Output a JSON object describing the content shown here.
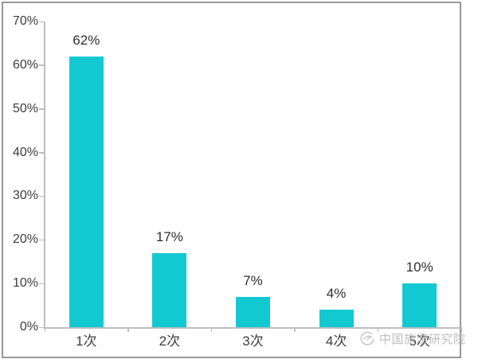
{
  "chart_data": {
    "type": "bar",
    "title": "",
    "xlabel": "",
    "ylabel": "",
    "categories": [
      "1次",
      "2次",
      "3次",
      "4次",
      "5次"
    ],
    "values": [
      62,
      17,
      7,
      4,
      10
    ],
    "value_labels": [
      "62%",
      "17%",
      "7%",
      "4%",
      "10%"
    ],
    "ylim": [
      0,
      70
    ],
    "y_tick_step": 10,
    "y_tick_labels": [
      "0%",
      "10%",
      "20%",
      "30%",
      "40%",
      "50%",
      "60%",
      "70%"
    ],
    "grid": "off",
    "legend": "none",
    "bar_color": "#12c9d2",
    "axis_color": "#bdbdbd",
    "text_color": "#3d3d3d",
    "frame_color": "#989898"
  },
  "watermark": {
    "logo_icon": "china-tourism-academy-logo",
    "text": "中国旅游研究院",
    "color": "#b3b3b3"
  }
}
